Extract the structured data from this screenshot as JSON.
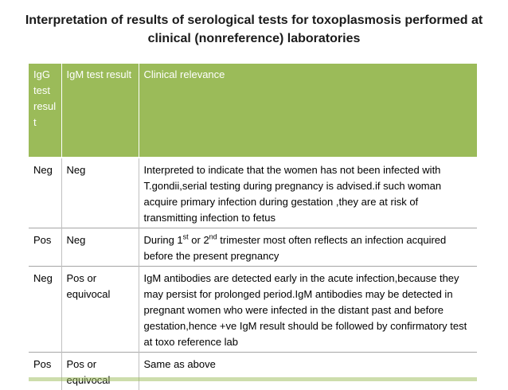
{
  "title": "Interpretation of results of serological tests for toxoplasmosis performed at clinical (nonreference) laboratories",
  "table": {
    "headers": [
      "IgG test result",
      "IgM test result",
      "Clinical relevance"
    ],
    "rows": [
      {
        "igg": "Neg",
        "igm": "Neg",
        "relevance": "Interpreted to indicate that the women has not been infected with T.gondii,serial testing during pregnancy is advised.if such woman acquire primary infection during gestation ,they are at risk of transmitting infection to fetus"
      },
      {
        "igg": "Pos",
        "igm": "Neg",
        "relevance_parts": [
          "During 1",
          "st",
          " or 2",
          "nd",
          " trimester most often reflects an infection acquired before the present pregnancy"
        ]
      },
      {
        "igg": "Neg",
        "igm": "Pos or equivocal",
        "relevance": "IgM antibodies are detected early in the acute infection,because they may persist for prolonged period.IgM antibodies may be detected in pregnant women who were infected in the distant past and before gestation,hence +ve IgM result should be followed by confirmatory test at toxo reference lab"
      },
      {
        "igg": "Pos",
        "igm": "Pos or equivocal",
        "relevance": "Same as above"
      }
    ]
  },
  "colors": {
    "header_bg": "#9bbb59",
    "header_text": "#ffffff"
  }
}
